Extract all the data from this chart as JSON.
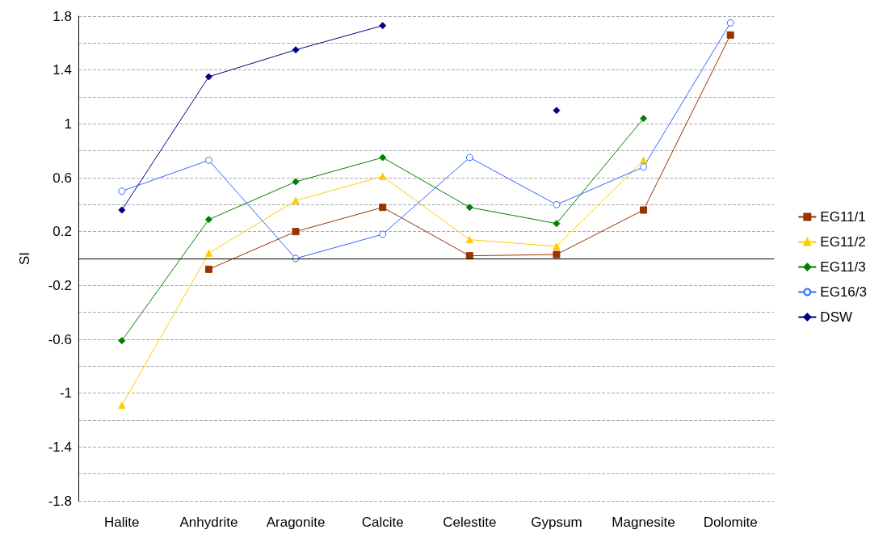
{
  "chart_data": {
    "type": "line",
    "ylabel": "SI",
    "categories": [
      "Halite",
      "Anhydrite",
      "Aragonite",
      "Calcite",
      "Celestite",
      "Gypsum",
      "Magnesite",
      "Dolomite"
    ],
    "series": [
      {
        "name": "EG11/1",
        "color": "#993300",
        "marker": "square",
        "values": [
          null,
          -0.08,
          0.2,
          0.38,
          0.02,
          0.03,
          0.36,
          1.66
        ]
      },
      {
        "name": "EG11/2",
        "color": "#ffcc00",
        "marker": "triangle",
        "values": [
          -1.09,
          0.04,
          0.43,
          0.61,
          0.14,
          0.09,
          0.73,
          null
        ]
      },
      {
        "name": "EG11/3",
        "color": "#008000",
        "marker": "diamond",
        "values": [
          -0.61,
          0.29,
          0.57,
          0.75,
          0.38,
          0.26,
          1.04,
          null
        ]
      },
      {
        "name": "EG16/3",
        "color": "#3366ff",
        "marker": "circle",
        "values": [
          0.5,
          0.73,
          0.0,
          0.18,
          0.75,
          0.4,
          0.68,
          1.75
        ]
      },
      {
        "name": "DSW",
        "color": "#000080",
        "marker": "diamond",
        "values": [
          0.36,
          1.35,
          1.55,
          1.73,
          null,
          1.1,
          null,
          null
        ]
      }
    ],
    "ylim": [
      -1.8,
      1.8
    ],
    "yticks": [
      -1.8,
      {
        "value": -1.6,
        "label": null
      },
      -1.4,
      {
        "value": -1.2,
        "label": null
      },
      -1,
      {
        "value": -0.8,
        "label": null
      },
      -0.6,
      {
        "value": -0.4,
        "label": null
      },
      -0.2,
      0.2,
      {
        "value": 0.4,
        "label": null
      },
      0.6,
      {
        "value": 0.8,
        "label": null
      },
      1,
      {
        "value": 1.2,
        "label": null
      },
      1.4,
      {
        "value": 1.6,
        "label": null
      },
      1.8
    ],
    "ref_lines": [
      {
        "axis": "y",
        "value": 0,
        "color": "#000000"
      }
    ],
    "grid": "y",
    "legend": "right",
    "line_style": "solid"
  }
}
